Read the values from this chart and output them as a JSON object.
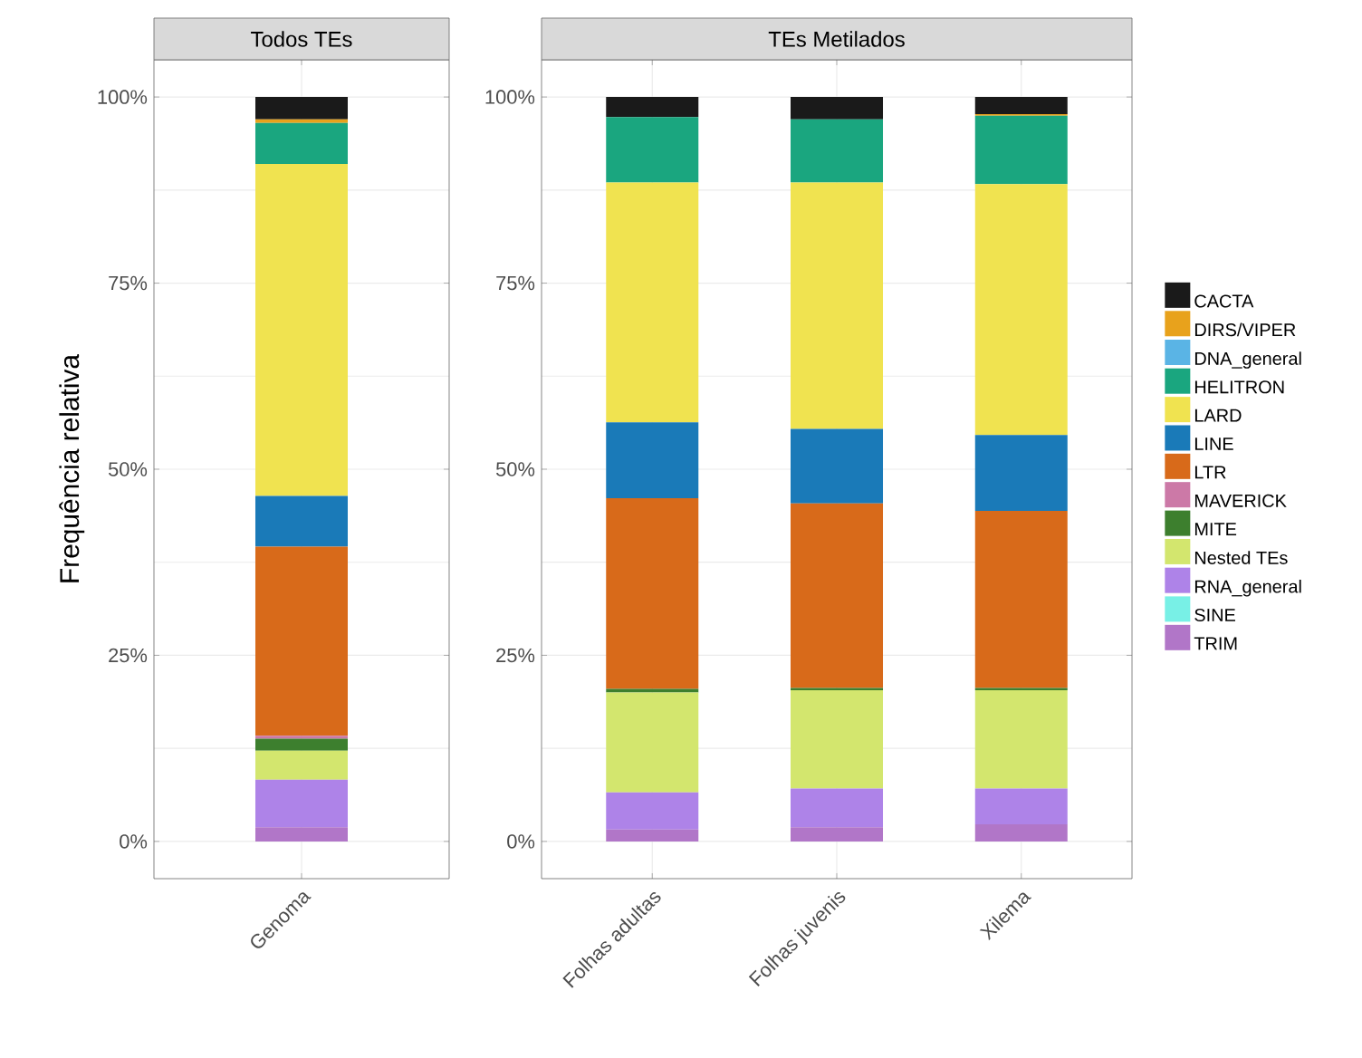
{
  "chart_data": [
    {
      "type": "bar",
      "title": "Todos TEs",
      "ylabel": "Frequência relativa",
      "categories": [
        "Genoma"
      ],
      "stacked": true,
      "grid": true,
      "legend": "right",
      "ylim": [
        -5,
        105
      ],
      "yticks": [
        {
          "value": 0,
          "label": "0%"
        },
        {
          "value": 25,
          "label": "25%"
        },
        {
          "value": 50,
          "label": "50%"
        },
        {
          "value": 75,
          "label": "75%"
        },
        {
          "value": 100,
          "label": "100%"
        }
      ],
      "series": [
        {
          "name": "TRIM",
          "color": "#b176c8",
          "values": [
            1.9
          ]
        },
        {
          "name": "SINE",
          "color": "#78f0e6",
          "values": [
            0
          ]
        },
        {
          "name": "RNA_general",
          "color": "#ae83e8",
          "values": [
            6.4
          ]
        },
        {
          "name": "Nested TEs",
          "color": "#d3e66e",
          "values": [
            3.9
          ]
        },
        {
          "name": "MITE",
          "color": "#3d7f2e",
          "values": [
            1.6
          ]
        },
        {
          "name": "MAVERICK",
          "color": "#cc79a7",
          "values": [
            0.4
          ]
        },
        {
          "name": "LTR",
          "color": "#d86a1a",
          "values": [
            25.4
          ]
        },
        {
          "name": "LINE",
          "color": "#1a7ab8",
          "values": [
            6.8
          ]
        },
        {
          "name": "LARD",
          "color": "#f0e350",
          "values": [
            44.6
          ]
        },
        {
          "name": "HELITRON",
          "color": "#1aa67f",
          "values": [
            5.5
          ]
        },
        {
          "name": "DNA_general",
          "color": "#5ab4e5",
          "values": [
            0
          ]
        },
        {
          "name": "DIRS/VIPER",
          "color": "#e8a21c",
          "values": [
            0.5
          ]
        },
        {
          "name": "CACTA",
          "color": "#1a1a1a",
          "values": [
            3.0
          ]
        }
      ]
    },
    {
      "type": "bar",
      "title": "TEs Metilados",
      "categories": [
        "Folhas adultas",
        "Folhas juvenis",
        "Xilema"
      ],
      "stacked": true,
      "grid": true,
      "ylim": [
        -5,
        105
      ],
      "yticks": [
        {
          "value": 0,
          "label": "0%"
        },
        {
          "value": 25,
          "label": "25%"
        },
        {
          "value": 50,
          "label": "50%"
        },
        {
          "value": 75,
          "label": "75%"
        },
        {
          "value": 100,
          "label": "100%"
        }
      ],
      "series": [
        {
          "color": "#b176c8",
          "values": [
            1.6,
            1.9,
            2.3
          ]
        },
        {
          "color": "#78f0e6",
          "values": [
            0,
            0,
            0
          ]
        },
        {
          "color": "#ae83e8",
          "values": [
            5.0,
            5.2,
            4.8
          ]
        },
        {
          "color": "#d3e66e",
          "values": [
            13.4,
            13.2,
            13.2
          ]
        },
        {
          "color": "#3d7f2e",
          "values": [
            0.5,
            0.3,
            0.3
          ]
        },
        {
          "color": "#cc79a7",
          "values": [
            0,
            0,
            0
          ]
        },
        {
          "color": "#d86a1a",
          "values": [
            25.6,
            24.8,
            23.8
          ]
        },
        {
          "color": "#1a7ab8",
          "values": [
            10.2,
            10.0,
            10.2
          ]
        },
        {
          "color": "#f0e350",
          "values": [
            32.2,
            33.1,
            33.7
          ]
        },
        {
          "color": "#1aa67f",
          "values": [
            8.8,
            8.5,
            9.2
          ]
        },
        {
          "color": "#5ab4e5",
          "values": [
            0,
            0,
            0
          ]
        },
        {
          "color": "#e8a21c",
          "values": [
            0,
            0,
            0.2
          ]
        },
        {
          "color": "#1a1a1a",
          "values": [
            2.7,
            3.0,
            2.3
          ]
        }
      ]
    }
  ]
}
